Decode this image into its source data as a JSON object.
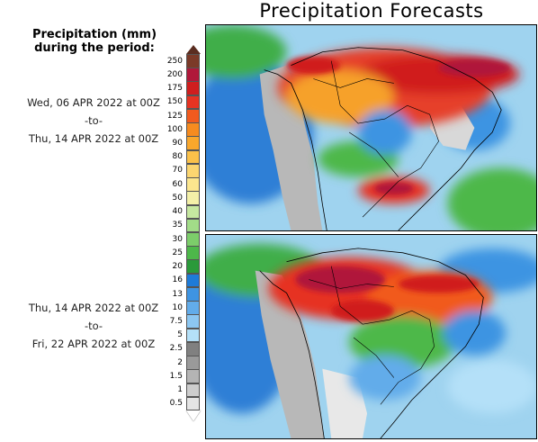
{
  "title": "Precipitation Forecasts",
  "legend": {
    "title_line1": "Precipitation (mm)",
    "title_line2": "during the period:",
    "levels": [
      "250",
      "200",
      "175",
      "150",
      "125",
      "100",
      "90",
      "80",
      "70",
      "60",
      "50",
      "40",
      "35",
      "30",
      "25",
      "20",
      "16",
      "13",
      "10",
      "7.5",
      "5",
      "2.5",
      "2",
      "1.5",
      "1",
      "0.5"
    ],
    "colors": [
      "#7b3a28",
      "#b0183a",
      "#d01e1e",
      "#e63322",
      "#f15a1e",
      "#f68b1f",
      "#f9a72c",
      "#fbc14a",
      "#fcd670",
      "#fce68e",
      "#f4f0a8",
      "#c6e8a0",
      "#a2dc88",
      "#7ccd6a",
      "#4db84a",
      "#2a9a3a",
      "#1e7bd8",
      "#3e94e2",
      "#62acea",
      "#8cc7f2",
      "#b4e0f8",
      "#808080",
      "#9a9a9a",
      "#b4b4b4",
      "#cdcdcd",
      "#e4e4e4"
    ]
  },
  "periods": [
    {
      "start": "Wed, 06 APR 2022 at 00Z",
      "sep": "-to-",
      "end": "Thu, 14 APR 2022 at 00Z"
    },
    {
      "start": "Thu, 14 APR 2022 at 00Z",
      "sep": "-to-",
      "end": "Fri, 22 APR 2022 at 00Z"
    }
  ]
}
